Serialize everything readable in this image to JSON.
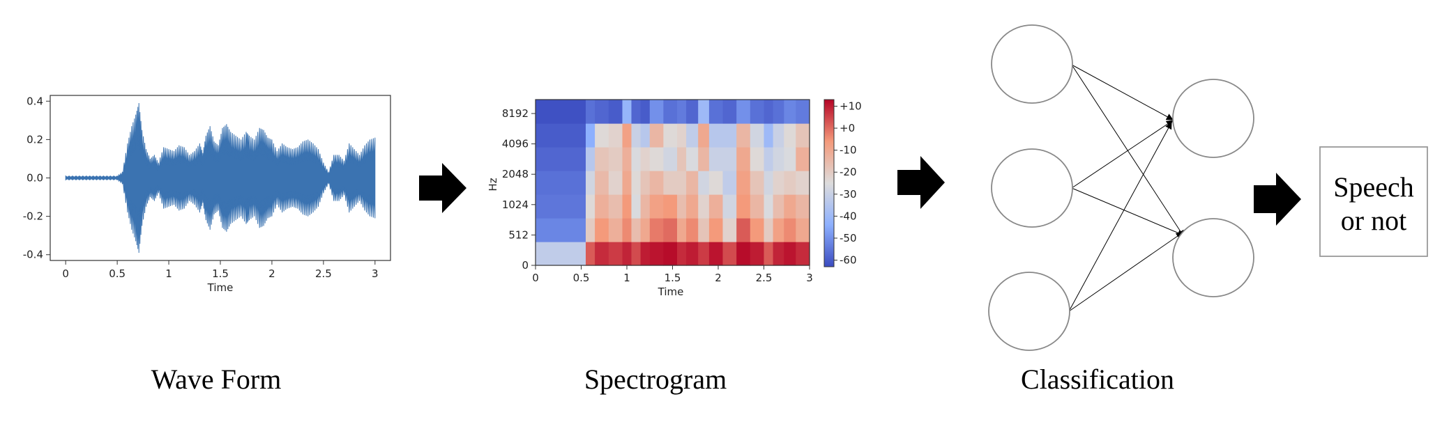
{
  "captions": {
    "waveform": "Wave Form",
    "spectrogram": "Spectrogram",
    "classification": "Classification"
  },
  "output": {
    "line1": "Speech",
    "line2": "or not"
  },
  "waveform": {
    "xlabel": "Time",
    "x_ticks": [
      "0",
      "0.5",
      "1",
      "1.5",
      "2",
      "2.5",
      "3"
    ],
    "y_ticks": [
      "0.4",
      "0.2",
      "0.0",
      "-0.2",
      "-0.4"
    ],
    "xlim": [
      -0.15,
      3.15
    ],
    "ylim": [
      -0.43,
      0.43
    ],
    "color": "#3b73b1",
    "envelope": [
      [
        0.0,
        0.01
      ],
      [
        0.1,
        0.01
      ],
      [
        0.2,
        0.01
      ],
      [
        0.3,
        0.01
      ],
      [
        0.4,
        0.01
      ],
      [
        0.5,
        0.01
      ],
      [
        0.55,
        0.03
      ],
      [
        0.6,
        0.18
      ],
      [
        0.64,
        0.27
      ],
      [
        0.68,
        0.33
      ],
      [
        0.71,
        0.39
      ],
      [
        0.74,
        0.25
      ],
      [
        0.78,
        0.15
      ],
      [
        0.82,
        0.1
      ],
      [
        0.86,
        0.12
      ],
      [
        0.9,
        0.08
      ],
      [
        0.95,
        0.16
      ],
      [
        1.0,
        0.15
      ],
      [
        1.05,
        0.14
      ],
      [
        1.1,
        0.17
      ],
      [
        1.15,
        0.16
      ],
      [
        1.2,
        0.12
      ],
      [
        1.25,
        0.14
      ],
      [
        1.3,
        0.18
      ],
      [
        1.33,
        0.13
      ],
      [
        1.36,
        0.22
      ],
      [
        1.4,
        0.27
      ],
      [
        1.44,
        0.19
      ],
      [
        1.48,
        0.17
      ],
      [
        1.52,
        0.26
      ],
      [
        1.56,
        0.28
      ],
      [
        1.6,
        0.24
      ],
      [
        1.65,
        0.22
      ],
      [
        1.7,
        0.2
      ],
      [
        1.75,
        0.24
      ],
      [
        1.78,
        0.22
      ],
      [
        1.83,
        0.2
      ],
      [
        1.88,
        0.26
      ],
      [
        1.92,
        0.25
      ],
      [
        1.96,
        0.21
      ],
      [
        2.0,
        0.2
      ],
      [
        2.05,
        0.14
      ],
      [
        2.1,
        0.18
      ],
      [
        2.15,
        0.16
      ],
      [
        2.2,
        0.15
      ],
      [
        2.25,
        0.16
      ],
      [
        2.3,
        0.19
      ],
      [
        2.35,
        0.2
      ],
      [
        2.4,
        0.18
      ],
      [
        2.45,
        0.15
      ],
      [
        2.5,
        0.08
      ],
      [
        2.55,
        0.03
      ],
      [
        2.6,
        0.12
      ],
      [
        2.65,
        0.12
      ],
      [
        2.7,
        0.09
      ],
      [
        2.75,
        0.18
      ],
      [
        2.8,
        0.15
      ],
      [
        2.85,
        0.12
      ],
      [
        2.9,
        0.17
      ],
      [
        2.95,
        0.2
      ],
      [
        3.0,
        0.21
      ]
    ]
  },
  "spectrogram": {
    "xlabel": "Time",
    "ylabel": "Hz",
    "x_ticks": [
      "0",
      "0.5",
      "1",
      "1.5",
      "2",
      "2.5",
      "3"
    ],
    "y_ticks": [
      "0",
      "512",
      "1024",
      "2048",
      "4096",
      "8192"
    ],
    "colorbar_ticks": [
      "+10",
      "+0",
      "-10",
      "-20",
      "-30",
      "-40",
      "-50",
      "-60"
    ],
    "colorbar_range_db": [
      -63,
      13
    ],
    "n_bins": 7,
    "segments": [
      {
        "t": [
          0.0,
          0.55
        ],
        "db": [
          -32,
          -52,
          -55,
          -56,
          -58,
          -60,
          -62
        ]
      },
      {
        "t": [
          0.55,
          0.65
        ],
        "db": [
          2,
          -20,
          -24,
          -28,
          -34,
          -44,
          -56
        ]
      },
      {
        "t": [
          0.65,
          0.8
        ],
        "db": [
          8,
          -6,
          -12,
          -15,
          -18,
          -24,
          -58
        ]
      },
      {
        "t": [
          0.8,
          0.95
        ],
        "db": [
          6,
          -12,
          -16,
          -22,
          -20,
          -22,
          -60
        ]
      },
      {
        "t": [
          0.95,
          1.05
        ],
        "db": [
          9,
          -4,
          -6,
          -10,
          -12,
          -8,
          -42
        ]
      },
      {
        "t": [
          1.05,
          1.15
        ],
        "db": [
          4,
          -16,
          -26,
          -24,
          -26,
          -30,
          -58
        ]
      },
      {
        "t": [
          1.15,
          1.25
        ],
        "db": [
          10,
          -10,
          -14,
          -18,
          -22,
          -34,
          -60
        ]
      },
      {
        "t": [
          1.25,
          1.4
        ],
        "db": [
          11,
          -2,
          -8,
          -14,
          -24,
          -14,
          -50
        ]
      },
      {
        "t": [
          1.4,
          1.55
        ],
        "db": [
          12,
          0,
          -6,
          -20,
          -28,
          -24,
          -56
        ]
      },
      {
        "t": [
          1.55,
          1.65
        ],
        "db": [
          8,
          -10,
          -16,
          -20,
          -18,
          -22,
          -54
        ]
      },
      {
        "t": [
          1.65,
          1.78
        ],
        "db": [
          10,
          -4,
          -10,
          -14,
          -26,
          -32,
          -58
        ]
      },
      {
        "t": [
          1.78,
          1.9
        ],
        "db": [
          6,
          -18,
          -22,
          -28,
          -14,
          -10,
          -40
        ]
      },
      {
        "t": [
          1.9,
          2.05
        ],
        "db": [
          11,
          -6,
          -12,
          -24,
          -30,
          -34,
          -56
        ]
      },
      {
        "t": [
          2.05,
          2.2
        ],
        "db": [
          4,
          -22,
          -28,
          -32,
          -30,
          -34,
          -58
        ]
      },
      {
        "t": [
          2.2,
          2.35
        ],
        "db": [
          12,
          2,
          -6,
          -8,
          -10,
          -14,
          -50
        ]
      },
      {
        "t": [
          2.35,
          2.5
        ],
        "db": [
          10,
          -6,
          -14,
          -18,
          -24,
          -28,
          -56
        ]
      },
      {
        "t": [
          2.5,
          2.6
        ],
        "db": [
          2,
          -20,
          -26,
          -28,
          -32,
          -40,
          -58
        ]
      },
      {
        "t": [
          2.6,
          2.72
        ],
        "db": [
          9,
          -8,
          -16,
          -22,
          -28,
          -30,
          -56
        ]
      },
      {
        "t": [
          2.72,
          2.85
        ],
        "db": [
          11,
          -4,
          -10,
          -20,
          -26,
          -24,
          -52
        ]
      },
      {
        "t": [
          2.85,
          3.0
        ],
        "db": [
          8,
          -10,
          -14,
          -22,
          -12,
          -18,
          -54
        ]
      }
    ]
  },
  "colors": {
    "node_stroke": "#888888",
    "box_stroke": "#999999",
    "arrow": "#000000",
    "axis": "#333333"
  }
}
